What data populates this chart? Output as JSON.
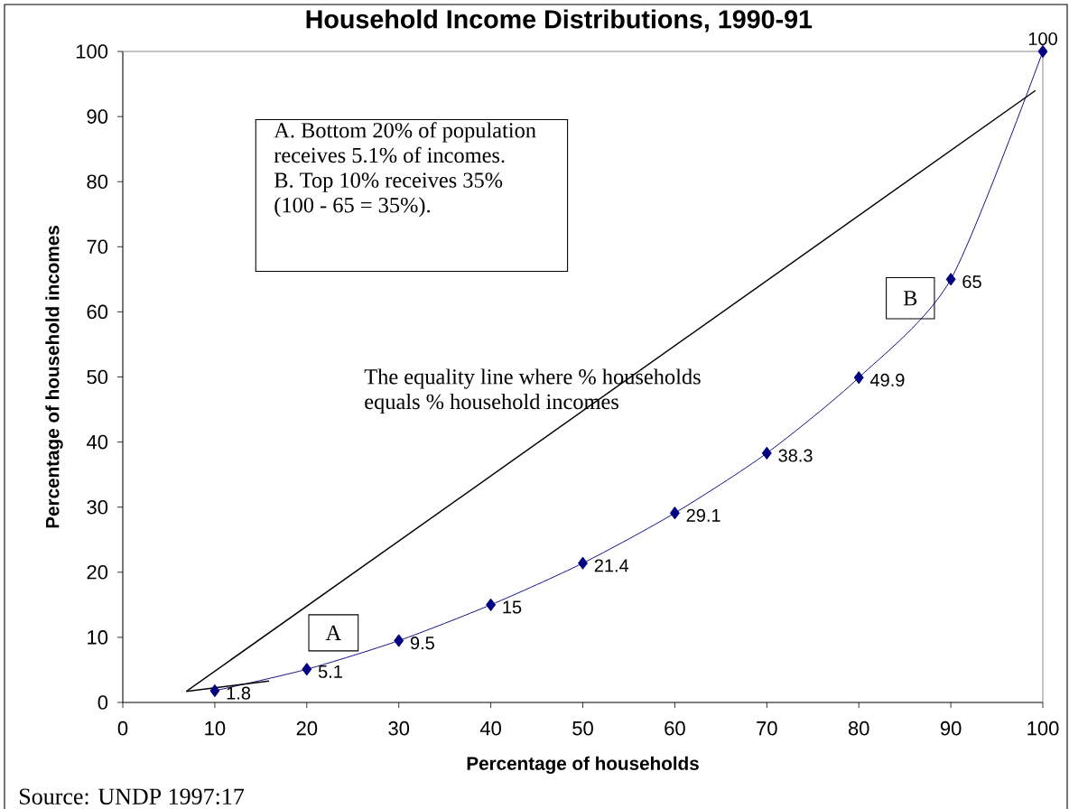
{
  "chart_data": {
    "type": "line",
    "title": "Household Income Distributions, 1990-91",
    "xlabel": "Percentage of households",
    "ylabel": "Percentage of household incomes",
    "xlim": [
      0,
      100
    ],
    "ylim": [
      0,
      100
    ],
    "xticks": [
      0,
      10,
      20,
      30,
      40,
      50,
      60,
      70,
      80,
      90,
      100
    ],
    "yticks": [
      0,
      10,
      20,
      30,
      40,
      50,
      60,
      70,
      80,
      90,
      100
    ],
    "series": [
      {
        "color": "#000080",
        "marker": "diamond",
        "x": [
          10,
          20,
          30,
          40,
          50,
          60,
          70,
          80,
          90,
          100
        ],
        "values": [
          1.8,
          5.1,
          9.5,
          15,
          21.4,
          29.1,
          38.3,
          49.9,
          65,
          100
        ],
        "value_labels": [
          "1.8",
          "5.1",
          "9.5",
          "15",
          "21.4",
          "29.1",
          "38.3",
          "49.9",
          "65",
          "100"
        ]
      },
      {
        "color": "#000000",
        "marker": "none",
        "x": [
          6.9,
          99.2
        ],
        "values": [
          1.7,
          94
        ]
      },
      {
        "color": "#000000",
        "marker": "none",
        "x": [
          6.9,
          15.9
        ],
        "values": [
          1.7,
          3.3
        ]
      }
    ],
    "annotations": [
      "A. Bottom 20% of population receives 5.1% of incomes.",
      "B. Top 10% receives 35% (100 - 65 = 35%).",
      "The equality line where % households equals % household incomes",
      "A",
      "B",
      "Source: UNDP 1997:17"
    ]
  }
}
